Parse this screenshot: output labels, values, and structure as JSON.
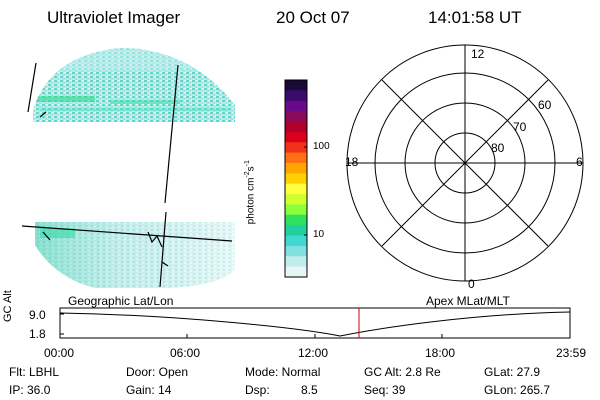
{
  "header": {
    "title": "Ultraviolet Imager",
    "date": "20 Oct 07",
    "time": "14:01:58 UT"
  },
  "colorbar": {
    "unit": "photon cm",
    "unit_exp1": "-2",
    "unit_s": "s",
    "unit_exp2": "-1",
    "tick_100": "100",
    "tick_10": "10",
    "colors": [
      "#1a0a3a",
      "#3b0a6b",
      "#6a0a8a",
      "#8a0a5e",
      "#b0002a",
      "#d8001a",
      "#f3301a",
      "#ff7010",
      "#ffa500",
      "#ffd000",
      "#ffff40",
      "#d0ff30",
      "#8cff3c",
      "#30e060",
      "#20d0a0",
      "#40d8d0",
      "#80e0e0",
      "#c0ecec",
      "#e8f6f6"
    ]
  },
  "polar": {
    "mlt_12": "12",
    "mlt_18": "18",
    "mlt_6": "6",
    "mlt_0": "0",
    "lat_60": "60",
    "lat_70": "70",
    "lat_80": "80"
  },
  "plot_labels": {
    "left": "Geographic Lat/Lon",
    "right": "Apex MLat/MLT"
  },
  "altitude_plot": {
    "ylabel": "GC Alt",
    "yticks": [
      "9.0",
      "1.8"
    ],
    "xticks": [
      "00:00",
      "06:00",
      "12:00",
      "18:00",
      "23:59"
    ],
    "marker_color": "#d00000"
  },
  "info": {
    "flt": "Flt: LBHL",
    "ip": "IP: 36.0",
    "door": "Door: Open",
    "gain": "Gain: 14",
    "mode": "Mode: Normal",
    "dsp_label": "Dsp:",
    "dsp_value": "8.5",
    "gcalt": "GC Alt: 2.8 Re",
    "seq": "Seq: 39",
    "glat": "GLat:  27.9",
    "glon": "GLon: 265.7"
  }
}
